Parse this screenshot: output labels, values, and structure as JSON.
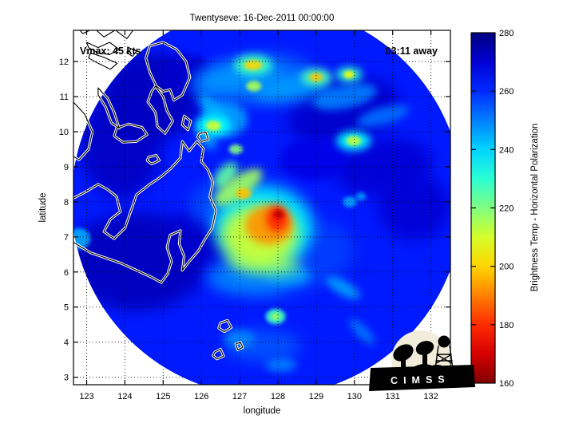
{
  "figure": {
    "title": "Twentyseve: 16-Dec-2011 00:00:00",
    "annotations": {
      "vmax": "Vmax: 45 kts",
      "overpass": "03:11 away"
    },
    "logo_text": "CIMSS"
  },
  "chart_data": {
    "type": "heatmap",
    "title": "Twentyseve: 16-Dec-2011 00:00:00",
    "xlabel": "longitude",
    "ylabel": "latitude",
    "xlim": [
      122.65,
      132.55
    ],
    "ylim": [
      2.8,
      12.92
    ],
    "xticks": [
      123,
      124,
      125,
      126,
      127,
      128,
      129,
      130,
      131,
      132
    ],
    "yticks": [
      3,
      4,
      5,
      6,
      7,
      8,
      9,
      10,
      11,
      12
    ],
    "grid": "dotted",
    "colorbar": {
      "label": "Brightness Temp - Horizontal Polarization",
      "min": 160,
      "max": 280,
      "ticks": [
        280,
        260,
        240,
        220,
        200,
        180,
        160
      ],
      "colormap": "jet-reversed (280K dark blue to 160K dark red)"
    },
    "swath": {
      "center_lon": 127.72,
      "center_lat": 8.03,
      "radius_deg": 5.12,
      "background_tb_K": 262
    },
    "features": [
      {
        "lon": 124.7,
        "lat": 11.0,
        "rx": 1.3,
        "ry": 1.25,
        "rot": 0,
        "tb": 273
      },
      {
        "lon": 123.9,
        "lat": 9.6,
        "rx": 1.05,
        "ry": 1.5,
        "rot": 0,
        "tb": 272
      },
      {
        "lon": 124.3,
        "lat": 6.3,
        "rx": 1.85,
        "ry": 1.4,
        "rot": 0,
        "tb": 273
      },
      {
        "lon": 125.95,
        "lat": 6.95,
        "rx": 0.9,
        "ry": 0.8,
        "rot": 0,
        "tb": 271
      },
      {
        "lon": 125.6,
        "lat": 11.6,
        "rx": 0.7,
        "ry": 0.6,
        "rot": 0,
        "tb": 271
      },
      {
        "lon": 129.7,
        "lat": 10.6,
        "rx": 1.5,
        "ry": 0.9,
        "rot": -15,
        "tb": 271
      },
      {
        "lon": 130.75,
        "lat": 9.0,
        "rx": 1.3,
        "ry": 0.8,
        "rot": -10,
        "tb": 270
      },
      {
        "lon": 131.55,
        "lat": 7.85,
        "rx": 0.95,
        "ry": 0.95,
        "rot": 0,
        "tb": 270
      },
      {
        "lon": 128.9,
        "lat": 9.2,
        "rx": 0.85,
        "ry": 0.6,
        "rot": 0,
        "tb": 268
      },
      {
        "lon": 127.3,
        "lat": 11.5,
        "rx": 1.6,
        "ry": 0.7,
        "rot": -8,
        "tb": 254
      },
      {
        "lon": 127.6,
        "lat": 5.9,
        "rx": 1.5,
        "ry": 0.6,
        "rot": 0,
        "tb": 256
      },
      {
        "lon": 126.6,
        "lat": 7.9,
        "rx": 0.9,
        "ry": 0.7,
        "rot": 0,
        "tb": 256
      },
      {
        "lon": 128.9,
        "lat": 6.6,
        "rx": 1.1,
        "ry": 0.9,
        "rot": 0,
        "tb": 258
      },
      {
        "lon": 127.6,
        "lat": 3.9,
        "rx": 1.0,
        "ry": 0.45,
        "rot": 0,
        "tb": 255
      },
      {
        "lon": 127.0,
        "lat": 11.55,
        "rx": 1.15,
        "ry": 0.42,
        "rot": -10,
        "tb": 247
      },
      {
        "lon": 128.35,
        "lat": 11.25,
        "rx": 1.05,
        "ry": 0.38,
        "rot": -8,
        "tb": 246
      },
      {
        "lon": 129.75,
        "lat": 11.0,
        "rx": 0.85,
        "ry": 0.33,
        "rot": -12,
        "tb": 250
      },
      {
        "lon": 126.6,
        "lat": 10.35,
        "rx": 0.6,
        "ry": 0.5,
        "rot": 0,
        "tb": 246
      },
      {
        "lon": 126.33,
        "lat": 10.58,
        "rx": 0.55,
        "ry": 0.22,
        "rot": 50,
        "tb": 244
      },
      {
        "lon": 126.12,
        "lat": 9.9,
        "rx": 0.42,
        "ry": 0.2,
        "rot": 60,
        "tb": 246
      },
      {
        "lon": 130.75,
        "lat": 10.45,
        "rx": 0.7,
        "ry": 0.25,
        "rot": -15,
        "tb": 252
      },
      {
        "lon": 129.88,
        "lat": 8.0,
        "rx": 0.18,
        "ry": 0.15,
        "rot": 0,
        "tb": 245
      },
      {
        "lon": 130.17,
        "lat": 8.15,
        "rx": 0.14,
        "ry": 0.12,
        "rot": 0,
        "tb": 248
      },
      {
        "lon": 127.2,
        "lat": 5.75,
        "rx": 1.0,
        "ry": 0.33,
        "rot": 5,
        "tb": 249
      },
      {
        "lon": 128.25,
        "lat": 5.9,
        "rx": 0.6,
        "ry": 0.3,
        "rot": 0,
        "tb": 247
      },
      {
        "lon": 127.0,
        "lat": 4.1,
        "rx": 0.4,
        "ry": 0.25,
        "rot": 0,
        "tb": 249
      },
      {
        "lon": 128.08,
        "lat": 3.35,
        "rx": 0.4,
        "ry": 0.2,
        "rot": 0,
        "tb": 250
      },
      {
        "lon": 129.7,
        "lat": 5.55,
        "rx": 0.5,
        "ry": 0.2,
        "rot": 30,
        "tb": 246
      },
      {
        "lon": 130.2,
        "lat": 4.3,
        "rx": 0.45,
        "ry": 0.15,
        "rot": 45,
        "tb": 250
      },
      {
        "lon": 122.8,
        "lat": 6.95,
        "rx": 0.3,
        "ry": 0.3,
        "rot": 0,
        "tb": 245
      },
      {
        "lon": 127.35,
        "lat": 11.9,
        "rx": 0.5,
        "ry": 0.3,
        "rot": 0,
        "tb": 228
      },
      {
        "lon": 127.35,
        "lat": 11.9,
        "rx": 0.24,
        "ry": 0.14,
        "rot": 0,
        "tb": 200
      },
      {
        "lon": 127.37,
        "lat": 11.3,
        "rx": 0.2,
        "ry": 0.15,
        "rot": 0,
        "tb": 215
      },
      {
        "lon": 129.0,
        "lat": 11.55,
        "rx": 0.4,
        "ry": 0.25,
        "rot": 0,
        "tb": 226
      },
      {
        "lon": 129.0,
        "lat": 11.55,
        "rx": 0.17,
        "ry": 0.12,
        "rot": 0,
        "tb": 198
      },
      {
        "lon": 129.86,
        "lat": 11.63,
        "rx": 0.35,
        "ry": 0.22,
        "rot": 0,
        "tb": 230
      },
      {
        "lon": 129.86,
        "lat": 11.63,
        "rx": 0.14,
        "ry": 0.11,
        "rot": 0,
        "tb": 205
      },
      {
        "lon": 126.31,
        "lat": 10.17,
        "rx": 0.45,
        "ry": 0.3,
        "rot": 0,
        "tb": 235
      },
      {
        "lon": 126.31,
        "lat": 10.17,
        "rx": 0.2,
        "ry": 0.15,
        "rot": 0,
        "tb": 210
      },
      {
        "lon": 126.9,
        "lat": 9.5,
        "rx": 0.18,
        "ry": 0.14,
        "rot": 0,
        "tb": 220
      },
      {
        "lon": 129.98,
        "lat": 9.74,
        "rx": 0.45,
        "ry": 0.28,
        "rot": 0,
        "tb": 235
      },
      {
        "lon": 129.98,
        "lat": 9.74,
        "rx": 0.2,
        "ry": 0.14,
        "rot": 0,
        "tb": 212
      },
      {
        "lon": 127.62,
        "lat": 7.28,
        "rx": 1.3,
        "ry": 1.2,
        "rot": 0,
        "tb": 236
      },
      {
        "lon": 127.52,
        "lat": 7.05,
        "rx": 1.0,
        "ry": 0.85,
        "rot": 0,
        "tb": 210
      },
      {
        "lon": 126.96,
        "lat": 8.42,
        "rx": 0.75,
        "ry": 0.3,
        "rot": -35,
        "tb": 216
      },
      {
        "lon": 126.64,
        "lat": 8.76,
        "rx": 0.4,
        "ry": 0.25,
        "rot": -50,
        "tb": 224
      },
      {
        "lon": 127.77,
        "lat": 7.33,
        "rx": 0.62,
        "ry": 0.55,
        "rot": 0,
        "tb": 192
      },
      {
        "lon": 127.1,
        "lat": 8.24,
        "rx": 0.2,
        "ry": 0.16,
        "rot": 0,
        "tb": 198
      },
      {
        "lon": 127.98,
        "lat": 7.53,
        "rx": 0.28,
        "ry": 0.38,
        "rot": 0,
        "tb": 178
      },
      {
        "lon": 128.02,
        "lat": 7.64,
        "rx": 0.14,
        "ry": 0.13,
        "rot": 0,
        "tb": 168
      },
      {
        "lon": 127.62,
        "lat": 6.26,
        "rx": 0.95,
        "ry": 0.3,
        "rot": 5,
        "tb": 218
      },
      {
        "lon": 127.94,
        "lat": 4.73,
        "rx": 0.26,
        "ry": 0.22,
        "rot": 0,
        "tb": 228
      },
      {
        "lon": 127.94,
        "lat": 4.73,
        "rx": 0.11,
        "ry": 0.09,
        "rot": 0,
        "tb": 214
      }
    ],
    "coastlines": [
      {
        "name": "bicol-coast",
        "closed": false,
        "pts": [
          [
            122.65,
            13.1
          ],
          [
            122.9,
            12.8
          ],
          [
            123.2,
            12.95
          ],
          [
            123.45,
            12.7
          ],
          [
            123.75,
            12.9
          ],
          [
            124.05,
            12.65
          ],
          [
            124.25,
            12.95
          ],
          [
            124.4,
            13.1
          ]
        ]
      },
      {
        "name": "ticao",
        "closed": true,
        "pts": [
          [
            123.0,
            12.55
          ],
          [
            123.3,
            12.4
          ],
          [
            123.6,
            12.55
          ],
          [
            123.85,
            12.35
          ],
          [
            123.6,
            12.2
          ],
          [
            123.3,
            12.25
          ],
          [
            123.05,
            12.4
          ]
        ]
      },
      {
        "name": "masbate",
        "closed": true,
        "pts": [
          [
            123.1,
            12.25
          ],
          [
            123.45,
            12.12
          ],
          [
            123.8,
            11.95
          ],
          [
            123.62,
            11.78
          ],
          [
            123.3,
            11.95
          ],
          [
            123.05,
            12.1
          ]
        ]
      },
      {
        "name": "islet-ne",
        "closed": true,
        "pts": [
          [
            124.1,
            12.4
          ],
          [
            124.3,
            12.3
          ],
          [
            124.2,
            12.15
          ],
          [
            124.05,
            12.25
          ]
        ]
      },
      {
        "name": "samar",
        "closed": true,
        "pts": [
          [
            124.65,
            12.45
          ],
          [
            125.0,
            12.55
          ],
          [
            125.35,
            12.35
          ],
          [
            125.6,
            12.0
          ],
          [
            125.7,
            11.55
          ],
          [
            125.5,
            11.05
          ],
          [
            125.28,
            10.9
          ],
          [
            125.18,
            11.2
          ],
          [
            125.0,
            11.15
          ],
          [
            124.82,
            11.3
          ],
          [
            124.65,
            11.7
          ],
          [
            124.55,
            12.1
          ]
        ]
      },
      {
        "name": "leyte",
        "closed": true,
        "pts": [
          [
            124.8,
            11.3
          ],
          [
            125.0,
            11.0
          ],
          [
            125.1,
            10.6
          ],
          [
            125.25,
            10.3
          ],
          [
            125.05,
            9.95
          ],
          [
            124.85,
            10.15
          ],
          [
            124.8,
            10.55
          ],
          [
            124.6,
            10.85
          ],
          [
            124.7,
            11.15
          ]
        ]
      },
      {
        "name": "bohol",
        "closed": true,
        "pts": [
          [
            123.78,
            10.1
          ],
          [
            124.1,
            10.22
          ],
          [
            124.45,
            10.12
          ],
          [
            124.58,
            9.92
          ],
          [
            124.3,
            9.72
          ],
          [
            123.95,
            9.7
          ],
          [
            123.72,
            9.88
          ]
        ]
      },
      {
        "name": "cebu",
        "closed": true,
        "pts": [
          [
            123.3,
            11.25
          ],
          [
            123.55,
            10.95
          ],
          [
            123.72,
            10.55
          ],
          [
            123.85,
            10.1
          ],
          [
            123.65,
            10.25
          ],
          [
            123.5,
            10.7
          ],
          [
            123.3,
            11.05
          ]
        ]
      },
      {
        "name": "negros",
        "closed": false,
        "pts": [
          [
            122.65,
            10.85
          ],
          [
            122.95,
            10.5
          ],
          [
            123.15,
            10.0
          ],
          [
            123.05,
            9.5
          ],
          [
            122.8,
            9.2
          ],
          [
            122.65,
            9.3
          ]
        ]
      },
      {
        "name": "camiguin",
        "closed": true,
        "pts": [
          [
            124.62,
            9.28
          ],
          [
            124.82,
            9.33
          ],
          [
            124.9,
            9.18
          ],
          [
            124.7,
            9.08
          ],
          [
            124.58,
            9.18
          ]
        ]
      },
      {
        "name": "dinagat",
        "closed": true,
        "pts": [
          [
            125.55,
            10.45
          ],
          [
            125.72,
            10.3
          ],
          [
            125.65,
            10.05
          ],
          [
            125.5,
            10.2
          ]
        ]
      },
      {
        "name": "siargao",
        "closed": true,
        "pts": [
          [
            125.95,
            9.95
          ],
          [
            126.12,
            9.98
          ],
          [
            126.18,
            9.78
          ],
          [
            126.0,
            9.72
          ],
          [
            125.9,
            9.85
          ]
        ]
      },
      {
        "name": "mindanao",
        "closed": false,
        "pts": [
          [
            122.65,
            8.1
          ],
          [
            123.0,
            8.3
          ],
          [
            123.3,
            8.5
          ],
          [
            123.55,
            8.35
          ],
          [
            123.78,
            8.15
          ],
          [
            123.88,
            7.72
          ],
          [
            123.62,
            7.5
          ],
          [
            123.45,
            7.15
          ],
          [
            123.72,
            6.95
          ],
          [
            124.0,
            7.25
          ],
          [
            124.15,
            7.72
          ],
          [
            124.3,
            8.2
          ],
          [
            124.65,
            8.5
          ],
          [
            124.95,
            8.72
          ],
          [
            125.2,
            8.95
          ],
          [
            125.45,
            9.25
          ],
          [
            125.5,
            9.72
          ],
          [
            125.68,
            9.45
          ],
          [
            125.88,
            9.72
          ],
          [
            126.05,
            9.52
          ],
          [
            126.0,
            9.15
          ],
          [
            126.18,
            8.9
          ],
          [
            126.3,
            8.55
          ],
          [
            126.22,
            8.15
          ],
          [
            126.38,
            7.75
          ],
          [
            126.28,
            7.25
          ],
          [
            126.1,
            6.95
          ],
          [
            125.92,
            6.6
          ],
          [
            125.68,
            6.3
          ],
          [
            125.5,
            6.05
          ],
          [
            125.55,
            6.45
          ],
          [
            125.42,
            6.8
          ],
          [
            125.45,
            7.18
          ],
          [
            125.18,
            7.05
          ],
          [
            125.1,
            6.7
          ],
          [
            125.22,
            6.3
          ],
          [
            125.12,
            5.95
          ],
          [
            124.95,
            5.7
          ],
          [
            124.7,
            5.85
          ],
          [
            124.3,
            6.05
          ],
          [
            123.9,
            6.25
          ],
          [
            123.5,
            6.4
          ],
          [
            123.1,
            6.55
          ],
          [
            122.65,
            6.85
          ]
        ]
      },
      {
        "name": "talaud-1",
        "closed": true,
        "pts": [
          [
            126.5,
            4.55
          ],
          [
            126.68,
            4.62
          ],
          [
            126.78,
            4.42
          ],
          [
            126.6,
            4.3
          ],
          [
            126.45,
            4.4
          ]
        ]
      },
      {
        "name": "talaud-2",
        "closed": true,
        "pts": [
          [
            126.35,
            3.72
          ],
          [
            126.5,
            3.8
          ],
          [
            126.58,
            3.6
          ],
          [
            126.4,
            3.52
          ],
          [
            126.3,
            3.62
          ]
        ]
      },
      {
        "name": "talaud-3",
        "closed": true,
        "pts": [
          [
            126.9,
            3.95
          ],
          [
            127.02,
            4.0
          ],
          [
            127.08,
            3.85
          ],
          [
            126.95,
            3.78
          ]
        ]
      }
    ]
  }
}
